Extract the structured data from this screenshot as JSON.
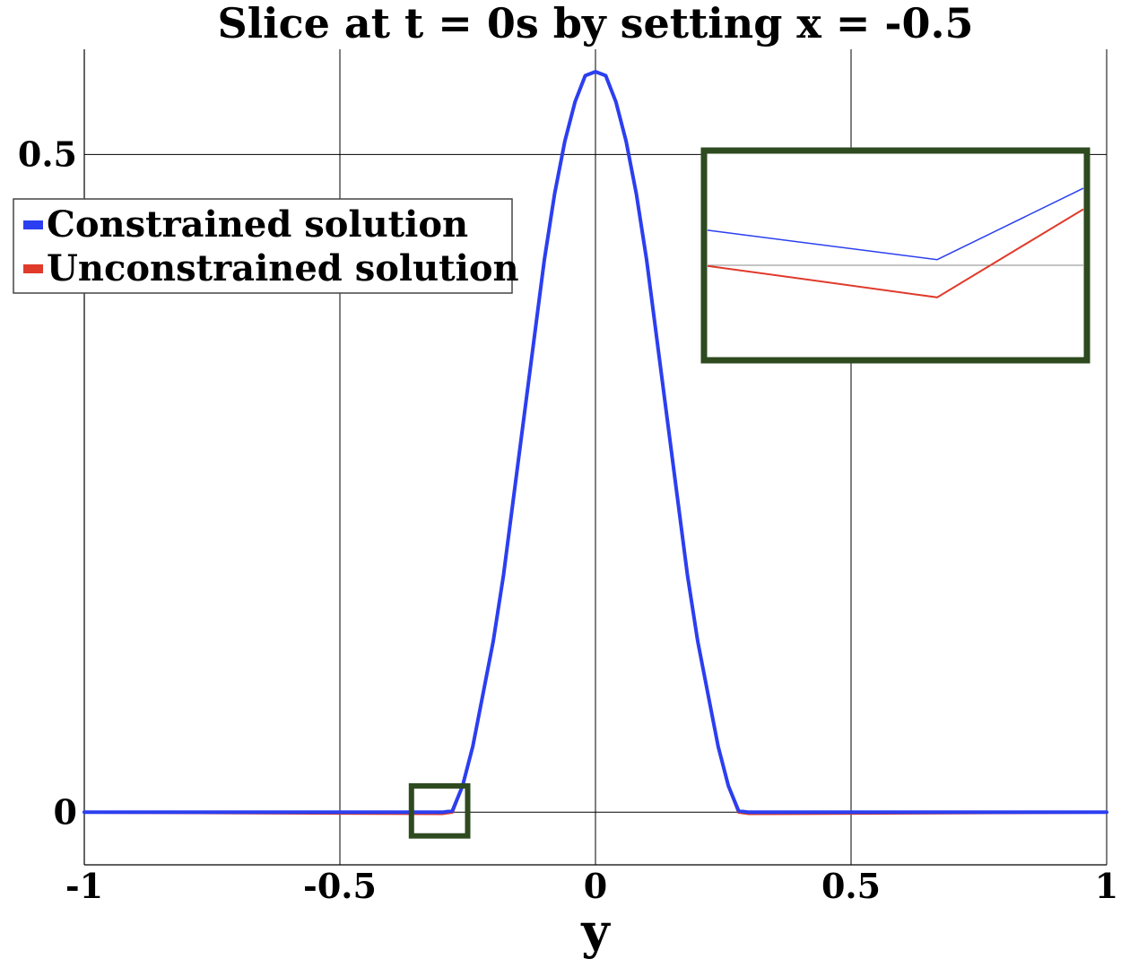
{
  "chart_data": {
    "type": "line",
    "title": "Slice at t = 0s by setting x = -0.5",
    "xlabel": "y",
    "ylabel": "",
    "xlim": [
      -1,
      1
    ],
    "ylim": [
      -0.04,
      0.58
    ],
    "x_ticks": [
      -1,
      -0.5,
      0,
      0.5,
      1
    ],
    "x_tick_labels": [
      "-1",
      "-0.5",
      "0",
      "0.5",
      "1"
    ],
    "y_ticks": [
      0,
      0.5
    ],
    "y_tick_labels": [
      "0",
      "0.5"
    ],
    "grid": true,
    "legend_position": "upper-left",
    "series": [
      {
        "name": "Constrained solution",
        "color": "#2b3ff0",
        "x": [
          -1,
          -0.3,
          -0.28,
          -0.26,
          -0.24,
          -0.22,
          -0.2,
          -0.18,
          -0.16,
          -0.14,
          -0.12,
          -0.1,
          -0.08,
          -0.06,
          -0.04,
          -0.02,
          0,
          0.02,
          0.04,
          0.06,
          0.08,
          0.1,
          0.12,
          0.14,
          0.16,
          0.18,
          0.2,
          0.22,
          0.24,
          0.26,
          0.28,
          0.3,
          1
        ],
        "y": [
          0,
          0,
          0.001,
          0.02,
          0.05,
          0.09,
          0.13,
          0.18,
          0.24,
          0.3,
          0.36,
          0.42,
          0.47,
          0.51,
          0.54,
          0.56,
          0.563,
          0.56,
          0.54,
          0.51,
          0.47,
          0.42,
          0.36,
          0.3,
          0.24,
          0.18,
          0.13,
          0.09,
          0.05,
          0.02,
          0.001,
          0,
          0
        ]
      },
      {
        "name": "Unconstrained solution",
        "color": "#e03a2a",
        "x": [
          -1,
          -0.3,
          -0.28,
          -0.26,
          -0.24,
          -0.22,
          -0.2,
          -0.18,
          -0.16,
          -0.14,
          -0.12,
          -0.1,
          -0.08,
          -0.06,
          -0.04,
          -0.02,
          0,
          0.02,
          0.04,
          0.06,
          0.08,
          0.1,
          0.12,
          0.14,
          0.16,
          0.18,
          0.2,
          0.22,
          0.24,
          0.26,
          0.28,
          0.3,
          1
        ],
        "y": [
          0,
          -0.001,
          0,
          0.02,
          0.05,
          0.09,
          0.13,
          0.18,
          0.24,
          0.3,
          0.36,
          0.42,
          0.47,
          0.51,
          0.54,
          0.56,
          0.563,
          0.56,
          0.54,
          0.51,
          0.47,
          0.42,
          0.36,
          0.3,
          0.24,
          0.18,
          0.13,
          0.09,
          0.05,
          0.02,
          0,
          -0.001,
          0
        ]
      }
    ],
    "zoom_region": {
      "x": [
        -0.36,
        -0.25
      ],
      "y": [
        -0.018,
        0.02
      ],
      "frame_color": "#2e4a1f",
      "inset_series": {
        "Constrained solution": [
          0.62,
          0.48,
          0.82
        ],
        "Unconstrained solution": [
          0.45,
          0.3,
          0.72
        ]
      }
    }
  }
}
